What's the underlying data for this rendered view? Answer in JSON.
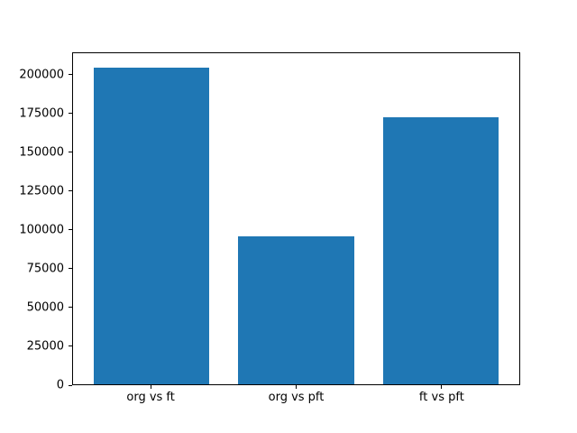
{
  "figure": {
    "background": "#ffffff"
  },
  "chart_data": {
    "type": "bar",
    "title": "",
    "xlabel": "",
    "ylabel": "",
    "categories": [
      "org vs ft",
      "org vs pft",
      "ft vs pft"
    ],
    "values": [
      205000,
      96000,
      173000
    ],
    "yticks": [
      0,
      25000,
      50000,
      75000,
      100000,
      125000,
      150000,
      175000,
      200000
    ],
    "ylim": [
      0,
      214500
    ],
    "xlim": [
      -0.54,
      2.54
    ],
    "bar_width": 0.8,
    "bar_color": "#1f77b4",
    "axis_color": "#000000",
    "text_color": "#000000",
    "grid": false,
    "legend_position": "none"
  }
}
